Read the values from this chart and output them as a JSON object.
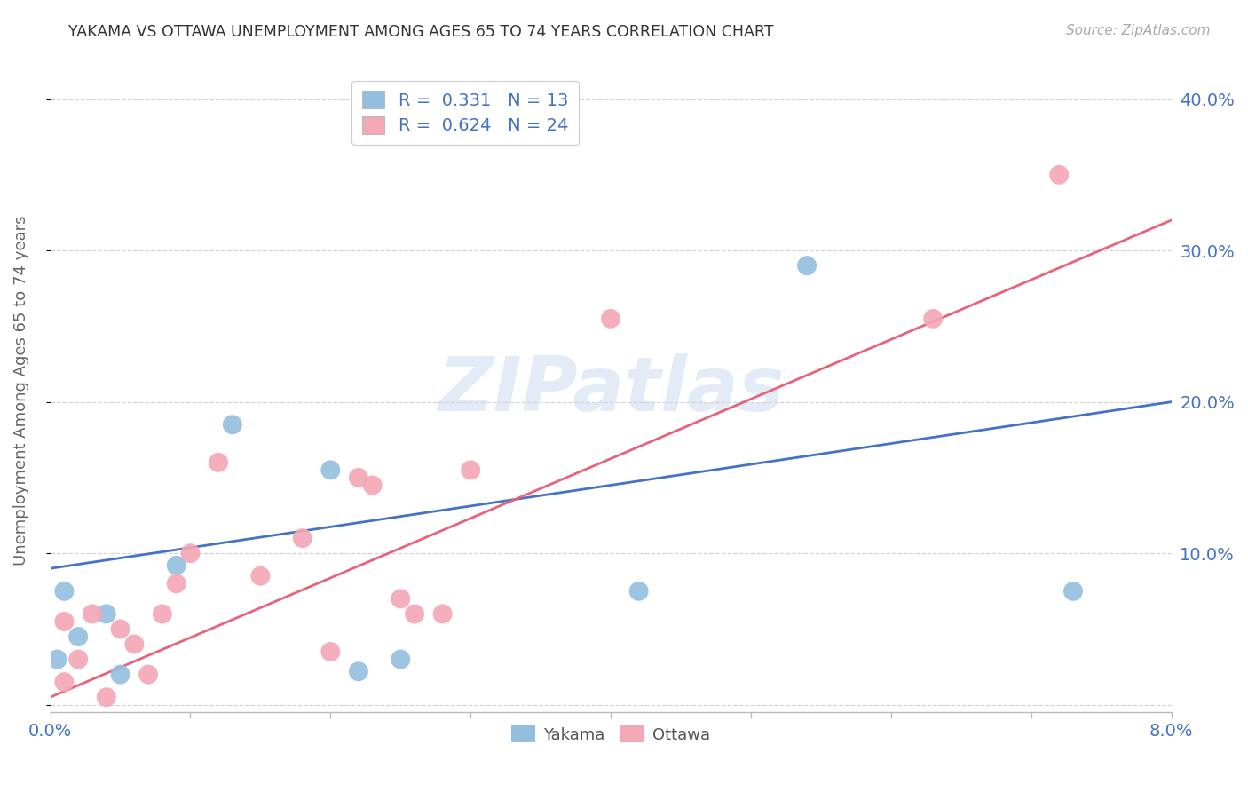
{
  "title": "YAKAMA VS OTTAWA UNEMPLOYMENT AMONG AGES 65 TO 74 YEARS CORRELATION CHART",
  "source": "Source: ZipAtlas.com",
  "ylabel": "Unemployment Among Ages 65 to 74 years",
  "xlim": [
    0,
    0.08
  ],
  "ylim": [
    -0.005,
    0.42
  ],
  "xticks": [
    0.0,
    0.01,
    0.02,
    0.03,
    0.04,
    0.05,
    0.06,
    0.07,
    0.08
  ],
  "xtick_labels": [
    "0.0%",
    "",
    "",
    "",
    "",
    "",
    "",
    "",
    "8.0%"
  ],
  "yticks": [
    0.0,
    0.1,
    0.2,
    0.3,
    0.4
  ],
  "ytick_labels_right": [
    "",
    "10.0%",
    "20.0%",
    "30.0%",
    "40.0%"
  ],
  "yakama_color": "#93BEDE",
  "ottawa_color": "#F4A7B5",
  "yakama_line_color": "#4472C4",
  "ottawa_line_color": "#E8637A",
  "background_color": "#ffffff",
  "grid_color": "#d4d4d4",
  "watermark": "ZIPatlas",
  "legend_R_yakama": "R =  0.331   N = 13",
  "legend_R_ottawa": "R =  0.624   N = 24",
  "legend_label_yakama": "Yakama",
  "legend_label_ottawa": "Ottawa",
  "yakama_x": [
    0.0005,
    0.001,
    0.002,
    0.004,
    0.005,
    0.009,
    0.013,
    0.02,
    0.022,
    0.025,
    0.042,
    0.054,
    0.073
  ],
  "yakama_y": [
    0.03,
    0.075,
    0.045,
    0.06,
    0.02,
    0.092,
    0.185,
    0.155,
    0.022,
    0.03,
    0.075,
    0.29,
    0.075
  ],
  "ottawa_x": [
    0.001,
    0.001,
    0.002,
    0.003,
    0.004,
    0.005,
    0.006,
    0.007,
    0.008,
    0.009,
    0.01,
    0.012,
    0.015,
    0.018,
    0.02,
    0.022,
    0.023,
    0.025,
    0.026,
    0.028,
    0.03,
    0.04,
    0.063,
    0.072
  ],
  "ottawa_y": [
    0.055,
    0.015,
    0.03,
    0.06,
    0.005,
    0.05,
    0.04,
    0.02,
    0.06,
    0.08,
    0.1,
    0.16,
    0.085,
    0.11,
    0.035,
    0.15,
    0.145,
    0.07,
    0.06,
    0.06,
    0.155,
    0.255,
    0.255,
    0.35
  ],
  "blue_line_x0": 0.0,
  "blue_line_y0": 0.09,
  "blue_line_x1": 0.08,
  "blue_line_y1": 0.2,
  "pink_line_x0": 0.0,
  "pink_line_y0": 0.005,
  "pink_line_x1": 0.08,
  "pink_line_y1": 0.32
}
